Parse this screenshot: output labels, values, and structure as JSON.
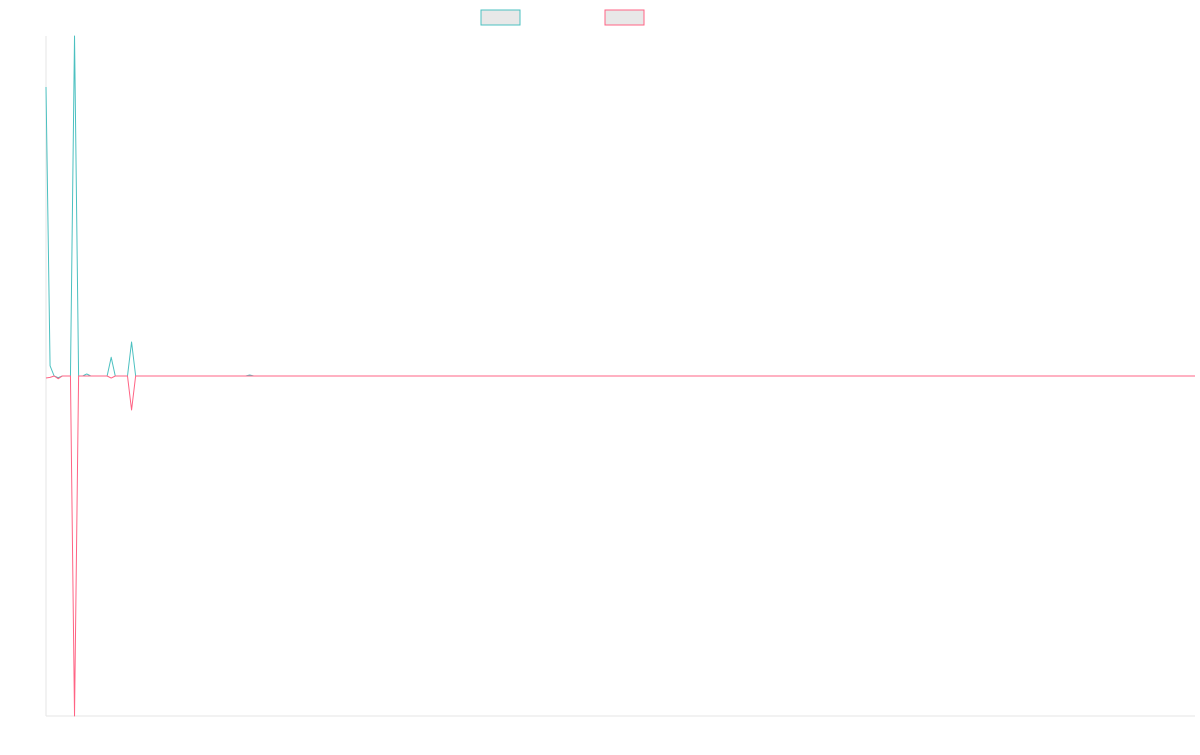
{
  "chart_data": {
    "type": "line",
    "title": "",
    "xlabel": "",
    "ylabel": "",
    "grid": false,
    "legend_position": "top-center",
    "ylim": [
      -100,
      100
    ],
    "series": [
      {
        "name": "",
        "color": "#4bc0c0",
        "fill": "#e8e8e8",
        "values": [
          85,
          3,
          0,
          -0.5,
          0,
          0,
          0,
          100,
          0,
          0,
          0.6,
          0,
          0,
          0,
          0,
          0,
          5.5,
          0,
          0,
          0,
          0,
          10,
          0,
          0,
          0,
          0,
          0,
          0,
          0,
          0,
          0,
          0,
          0,
          0,
          0,
          0,
          0,
          0,
          0,
          0,
          0,
          0,
          0,
          0,
          0,
          0,
          0,
          0,
          0,
          0,
          0.3,
          0,
          0,
          0,
          0,
          0,
          0,
          0,
          0,
          0,
          0,
          0,
          0,
          0,
          0,
          0,
          0,
          0,
          0,
          0,
          0,
          0,
          0,
          0,
          0,
          0,
          0,
          0,
          0,
          0,
          0,
          0,
          0,
          0,
          0,
          0,
          0,
          0,
          0,
          0,
          0,
          0,
          0,
          0,
          0,
          0,
          0,
          0,
          0,
          0,
          0,
          0,
          0,
          0,
          0,
          0,
          0,
          0,
          0,
          0,
          0,
          0,
          0,
          0,
          0,
          0,
          0,
          0,
          0,
          0,
          0,
          0,
          0,
          0,
          0,
          0,
          0,
          0,
          0,
          0,
          0,
          0,
          0,
          0,
          0,
          0,
          0,
          0,
          0,
          0,
          0,
          0,
          0,
          0,
          0,
          0,
          0,
          0,
          0,
          0,
          0,
          0,
          0,
          0,
          0,
          0,
          0,
          0,
          0,
          0,
          0,
          0,
          0,
          0,
          0,
          0,
          0,
          0,
          0,
          0,
          0,
          0,
          0,
          0,
          0,
          0,
          0,
          0,
          0,
          0,
          0,
          0,
          0,
          0,
          0,
          0,
          0,
          0,
          0,
          0,
          0,
          0,
          0,
          0,
          0,
          0,
          0,
          0,
          0,
          0,
          0,
          0,
          0,
          0,
          0,
          0,
          0,
          0,
          0,
          0,
          0,
          0,
          0,
          0,
          0,
          0,
          0,
          0,
          0,
          0,
          0,
          0,
          0,
          0,
          0,
          0,
          0,
          0,
          0,
          0,
          0,
          0,
          0,
          0,
          0,
          0,
          0,
          0,
          0,
          0,
          0,
          0,
          0,
          0,
          0,
          0,
          0,
          0,
          0,
          0,
          0,
          0,
          0,
          0,
          0,
          0,
          0,
          0,
          0,
          0,
          0,
          0,
          0,
          0,
          0,
          0,
          0,
          0,
          0,
          0,
          0,
          0,
          0,
          0,
          0,
          0,
          0,
          0
        ]
      },
      {
        "name": "",
        "color": "#ff6384",
        "fill": "#e8e8e8",
        "values": [
          -0.6,
          -0.4,
          0,
          -0.8,
          0,
          0,
          0,
          -100,
          0,
          0,
          0,
          0,
          0,
          0,
          0,
          0,
          -0.6,
          0,
          0,
          0,
          0,
          -10,
          0,
          0,
          0,
          0,
          0,
          0,
          0,
          0,
          0,
          0,
          0,
          0,
          0,
          0,
          0,
          0,
          0,
          0,
          0,
          0,
          0,
          0,
          0,
          0,
          0,
          0,
          0,
          0,
          0,
          0,
          0,
          0,
          0,
          0,
          0,
          0,
          0,
          0,
          0,
          0,
          0,
          0,
          0,
          0,
          0,
          0,
          0,
          0,
          0,
          0,
          0,
          0,
          0,
          0,
          0,
          0,
          0,
          0,
          0,
          0,
          0,
          0,
          0,
          0,
          0,
          0,
          0,
          0,
          0,
          0,
          0,
          0,
          0,
          0,
          0,
          0,
          0,
          0,
          0,
          0,
          0,
          0,
          0,
          0,
          0,
          0,
          0,
          0,
          0,
          0,
          0,
          0,
          0,
          0,
          0,
          0,
          0,
          0,
          0,
          0,
          0,
          0,
          0,
          0,
          0,
          0,
          0,
          0,
          0,
          0,
          0,
          0,
          0,
          0,
          0,
          0,
          0,
          0,
          0,
          0,
          0,
          0,
          0,
          0,
          0,
          0,
          0,
          0,
          0,
          0,
          0,
          0,
          0,
          0,
          0,
          0,
          0,
          0,
          0,
          0,
          0,
          0,
          0,
          0,
          0,
          0,
          0,
          0,
          0,
          0,
          0,
          0,
          0,
          0,
          0,
          0,
          0,
          0,
          0,
          0,
          0,
          0,
          0,
          0,
          0,
          0,
          0,
          0,
          0,
          0,
          0,
          0,
          0,
          0,
          0,
          0,
          0,
          0,
          0,
          0,
          0,
          0,
          0,
          0,
          0,
          0,
          0,
          0,
          0,
          0,
          0,
          0,
          0,
          0,
          0,
          0,
          0,
          0,
          0,
          0,
          0,
          0,
          0,
          0,
          0,
          0,
          0,
          0,
          0,
          0,
          0,
          0,
          0,
          0,
          0,
          0,
          0,
          0,
          0,
          0,
          0,
          0,
          0,
          0,
          0,
          0,
          0,
          0,
          0,
          0,
          0,
          0,
          0,
          0,
          0,
          0,
          0,
          0,
          0,
          0,
          0,
          0,
          0,
          0,
          0,
          0,
          0,
          0,
          0,
          0,
          0,
          0,
          0,
          0,
          0,
          0,
          0,
          0,
          0,
          0,
          0
        ]
      }
    ]
  }
}
